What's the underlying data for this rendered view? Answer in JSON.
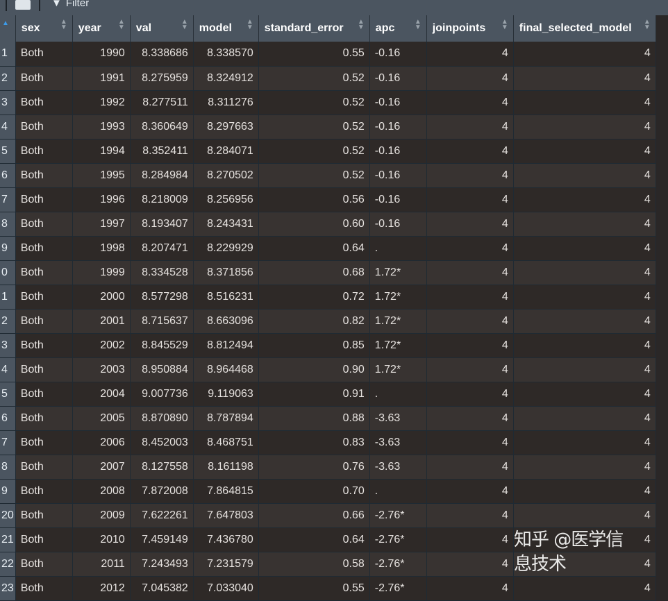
{
  "toolbar": {
    "filter_label": "Filter"
  },
  "columns": [
    "sex",
    "year",
    "val",
    "model",
    "standard_error",
    "apc",
    "joinpoints",
    "final_selected_model"
  ],
  "rows": [
    [
      "1",
      "Both",
      "1990",
      "8.338686",
      "8.338570",
      "0.55",
      "-0.16",
      "4",
      "4"
    ],
    [
      "2",
      "Both",
      "1991",
      "8.275959",
      "8.324912",
      "0.52",
      "-0.16",
      "4",
      "4"
    ],
    [
      "3",
      "Both",
      "1992",
      "8.277511",
      "8.311276",
      "0.52",
      "-0.16",
      "4",
      "4"
    ],
    [
      "4",
      "Both",
      "1993",
      "8.360649",
      "8.297663",
      "0.52",
      "-0.16",
      "4",
      "4"
    ],
    [
      "5",
      "Both",
      "1994",
      "8.352411",
      "8.284071",
      "0.52",
      "-0.16",
      "4",
      "4"
    ],
    [
      "6",
      "Both",
      "1995",
      "8.284984",
      "8.270502",
      "0.52",
      "-0.16",
      "4",
      "4"
    ],
    [
      "7",
      "Both",
      "1996",
      "8.218009",
      "8.256956",
      "0.56",
      "-0.16",
      "4",
      "4"
    ],
    [
      "8",
      "Both",
      "1997",
      "8.193407",
      "8.243431",
      "0.60",
      "-0.16",
      "4",
      "4"
    ],
    [
      "9",
      "Both",
      "1998",
      "8.207471",
      "8.229929",
      "0.64",
      ".",
      "4",
      "4"
    ],
    [
      "0",
      "Both",
      "1999",
      "8.334528",
      "8.371856",
      "0.68",
      "1.72*",
      "4",
      "4"
    ],
    [
      "1",
      "Both",
      "2000",
      "8.577298",
      "8.516231",
      "0.72",
      "1.72*",
      "4",
      "4"
    ],
    [
      "2",
      "Both",
      "2001",
      "8.715637",
      "8.663096",
      "0.82",
      "1.72*",
      "4",
      "4"
    ],
    [
      "3",
      "Both",
      "2002",
      "8.845529",
      "8.812494",
      "0.85",
      "1.72*",
      "4",
      "4"
    ],
    [
      "4",
      "Both",
      "2003",
      "8.950884",
      "8.964468",
      "0.90",
      "1.72*",
      "4",
      "4"
    ],
    [
      "5",
      "Both",
      "2004",
      "9.007736",
      "9.119063",
      "0.91",
      ".",
      "4",
      "4"
    ],
    [
      "6",
      "Both",
      "2005",
      "8.870890",
      "8.787894",
      "0.88",
      "-3.63",
      "4",
      "4"
    ],
    [
      "7",
      "Both",
      "2006",
      "8.452003",
      "8.468751",
      "0.83",
      "-3.63",
      "4",
      "4"
    ],
    [
      "8",
      "Both",
      "2007",
      "8.127558",
      "8.161198",
      "0.76",
      "-3.63",
      "4",
      "4"
    ],
    [
      "9",
      "Both",
      "2008",
      "7.872008",
      "7.864815",
      "0.70",
      ".",
      "4",
      "4"
    ],
    [
      "20",
      "Both",
      "2009",
      "7.622261",
      "7.647803",
      "0.66",
      "-2.76*",
      "4",
      "4"
    ],
    [
      "21",
      "Both",
      "2010",
      "7.459149",
      "7.436780",
      "0.64",
      "-2.76*",
      "4",
      "4"
    ],
    [
      "22",
      "Both",
      "2011",
      "7.243493",
      "7.231579",
      "0.58",
      "-2.76*",
      "4",
      "4"
    ],
    [
      "23",
      "Both",
      "2012",
      "7.045382",
      "7.033040",
      "0.55",
      "-2.76*",
      "4",
      "4"
    ]
  ],
  "watermark": "知乎 @医学信息技术"
}
